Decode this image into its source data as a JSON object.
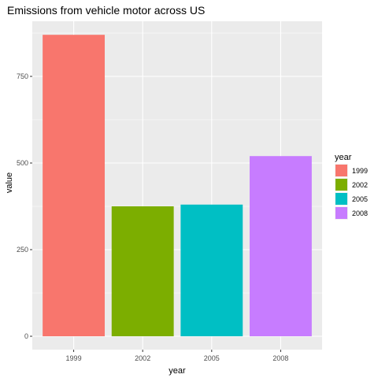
{
  "chart_data": {
    "type": "bar",
    "title": "Emissions from vehicle motor across US",
    "xlabel": "year",
    "ylabel": "value",
    "categories": [
      "1999",
      "2002",
      "2005",
      "2008"
    ],
    "values": [
      870,
      375,
      380,
      520
    ],
    "colors": [
      "#F8766D",
      "#7CAE00",
      "#00BFC4",
      "#C77CFF"
    ],
    "ylim": [
      0,
      900
    ],
    "yticks": [
      0,
      250,
      500,
      750
    ],
    "ytick_labels": [
      "0",
      "250",
      "500",
      "750"
    ],
    "grid": true,
    "panel_background": "#EBEBEB",
    "legend": {
      "title": "year",
      "position": "right",
      "entries": [
        "1999",
        "2002",
        "2005",
        "2008"
      ]
    }
  }
}
